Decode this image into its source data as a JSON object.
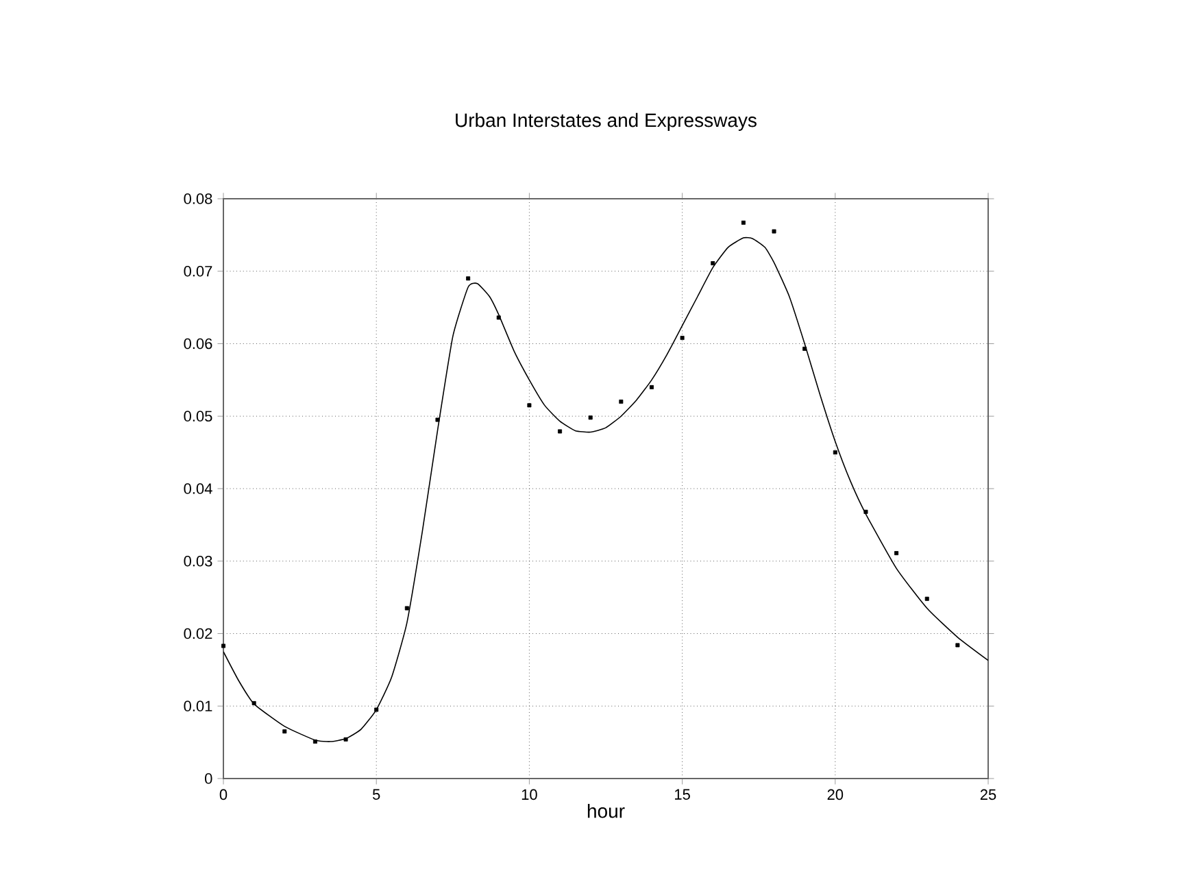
{
  "chart_data": {
    "type": "scatter",
    "title": "Urban Interstates and Expressways",
    "xlabel": "hour",
    "xlim": [
      0,
      25
    ],
    "xticks": [
      0,
      5,
      10,
      15,
      20,
      25
    ],
    "ylim": [
      0,
      0.08
    ],
    "yticks": [
      0,
      0.01,
      0.02,
      0.03,
      0.04,
      0.05,
      0.06,
      0.07,
      0.08
    ],
    "grid": true,
    "series": [
      {
        "marker": "square",
        "color": "#000000",
        "x": [
          0,
          1,
          2,
          3,
          4,
          5,
          6,
          7,
          8,
          9,
          10,
          11,
          12,
          13,
          14,
          15,
          16,
          17,
          18,
          19,
          20,
          21,
          22,
          23,
          24
        ],
        "values": [
          0.0183,
          0.0104,
          0.0065,
          0.0051,
          0.0054,
          0.0095,
          0.0235,
          0.0495,
          0.069,
          0.0636,
          0.0515,
          0.0479,
          0.0498,
          0.052,
          0.054,
          0.0608,
          0.0711,
          0.0767,
          0.0755,
          0.0593,
          0.045,
          0.0368,
          0.0311,
          0.0248,
          0.0184
        ]
      },
      {
        "type": "line",
        "marker": "none",
        "color": "#000000",
        "x": [
          0,
          0.5,
          1,
          2,
          3,
          3.5,
          4,
          4.5,
          5,
          5.5,
          6,
          6.5,
          7,
          7.5,
          8,
          8.3,
          8.7,
          9,
          9.5,
          10,
          10.5,
          11,
          11.5,
          12,
          12.5,
          13,
          13.5,
          14,
          14.5,
          15,
          15.5,
          16,
          16.5,
          17,
          17.3,
          17.7,
          18,
          18.5,
          19,
          19.5,
          20,
          20.5,
          21,
          22,
          23,
          24,
          25
        ],
        "values": [
          0.0175,
          0.0135,
          0.0103,
          0.0072,
          0.0053,
          0.0051,
          0.0055,
          0.0068,
          0.0095,
          0.014,
          0.0215,
          0.034,
          0.048,
          0.061,
          0.0678,
          0.0683,
          0.0665,
          0.064,
          0.059,
          0.055,
          0.0515,
          0.0493,
          0.048,
          0.0478,
          0.0484,
          0.05,
          0.0522,
          0.055,
          0.0585,
          0.0625,
          0.0665,
          0.0705,
          0.0733,
          0.0746,
          0.0745,
          0.0733,
          0.0712,
          0.0665,
          0.06,
          0.053,
          0.0465,
          0.041,
          0.0365,
          0.029,
          0.0235,
          0.0195,
          0.0163
        ]
      }
    ]
  }
}
